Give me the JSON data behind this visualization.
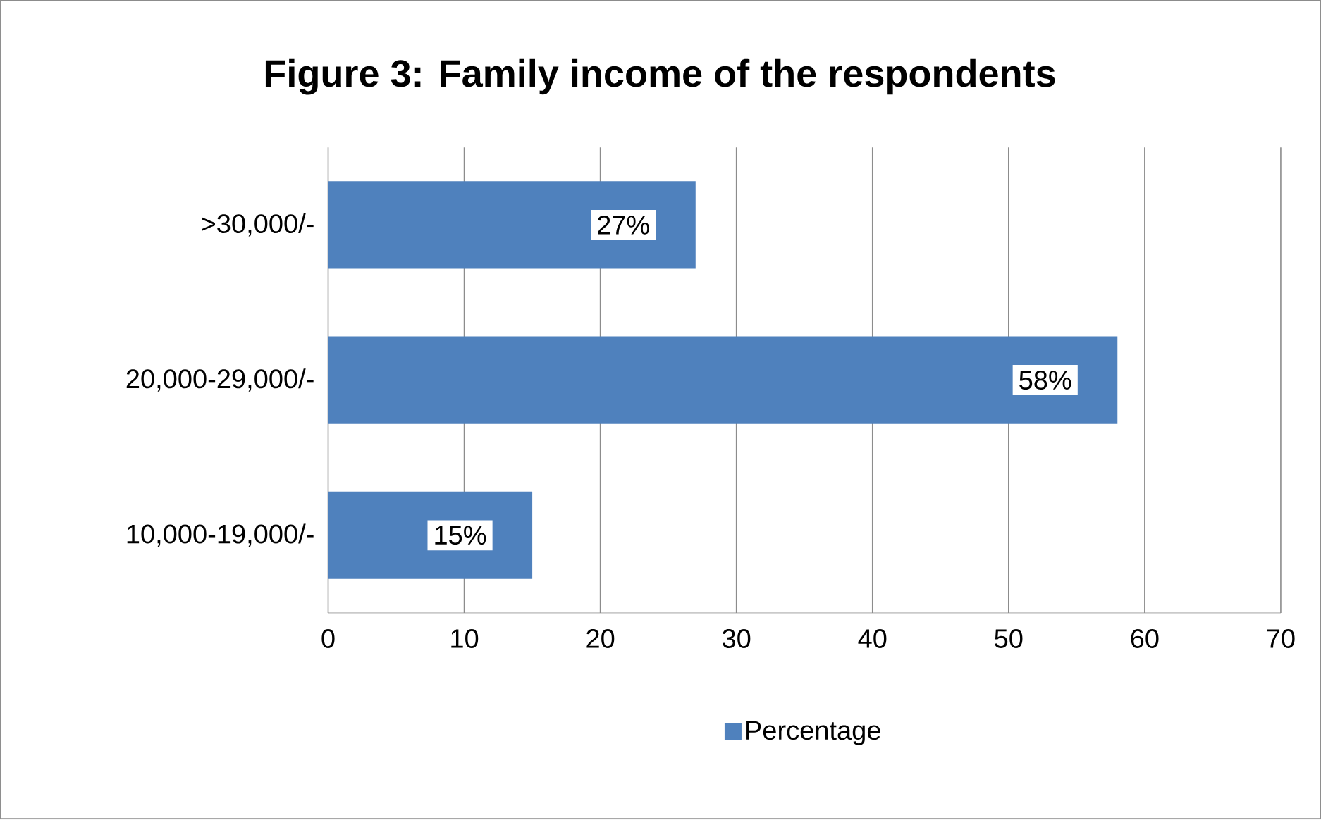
{
  "chart_data": {
    "type": "bar",
    "orientation": "horizontal",
    "title": "Figure 3: Family income of the respondents",
    "categories": [
      ">30,000/-",
      "20,000-29,000/-",
      "10,000-19,000/-"
    ],
    "series": [
      {
        "name": "Percentage",
        "color": "#4f81bd",
        "values": [
          27,
          58,
          15
        ],
        "value_labels": [
          "27%",
          "58%",
          "15%"
        ]
      }
    ],
    "xlim": [
      0,
      70
    ],
    "xticks": [
      0,
      10,
      20,
      30,
      40,
      50,
      60,
      70
    ],
    "grid": "x",
    "legend": "bottom"
  }
}
